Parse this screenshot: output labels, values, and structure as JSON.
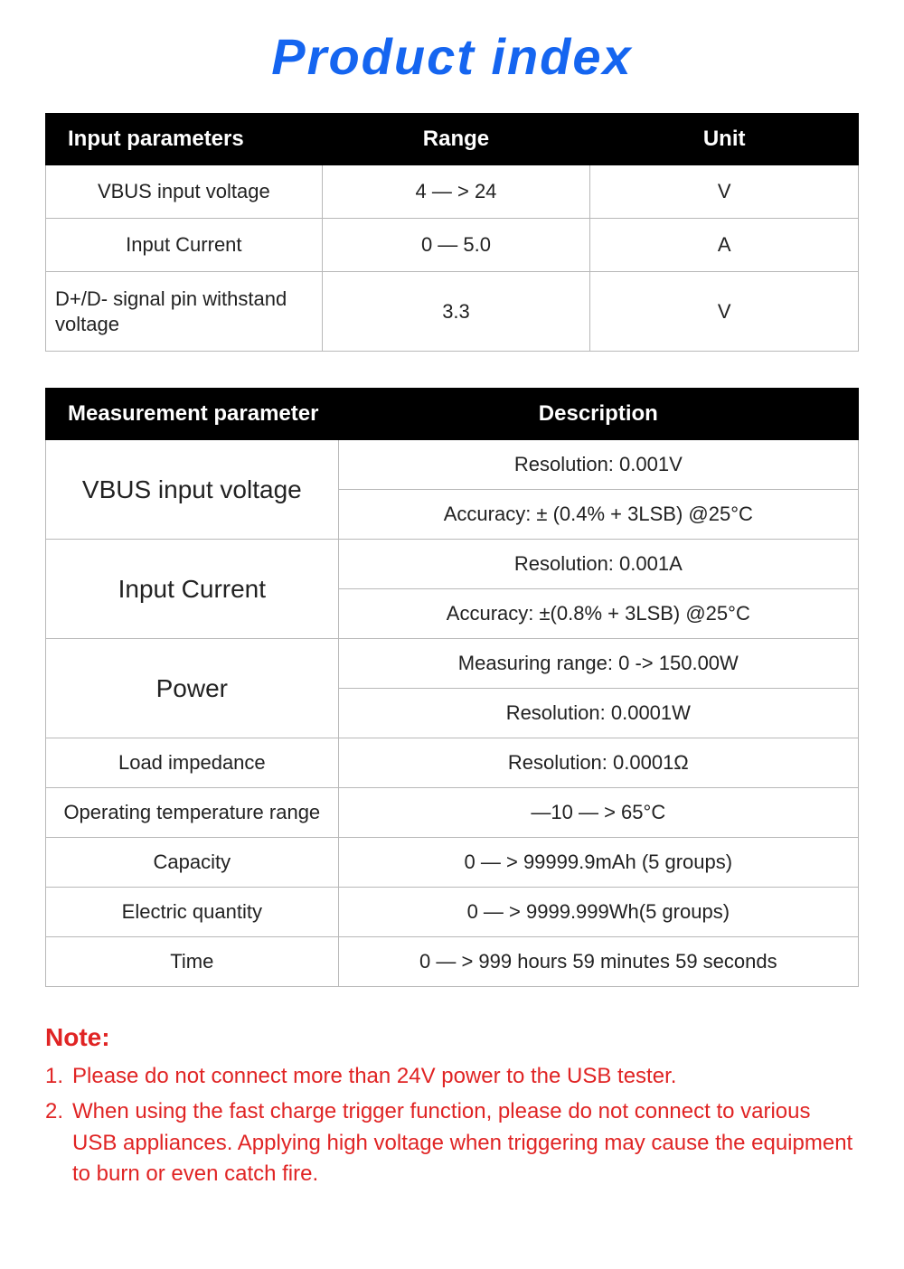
{
  "title": {
    "text": "Product index",
    "color": "#1565f0"
  },
  "table1": {
    "headers": [
      "Input parameters",
      "Range",
      "Unit"
    ],
    "rows": [
      {
        "param": "VBUS input voltage",
        "range": "4 — > 24",
        "unit": "V"
      },
      {
        "param": "Input Current",
        "range": "0 — 5.0",
        "unit": "A"
      },
      {
        "param": "D+/D- signal pin withstand voltage",
        "range": "3.3",
        "unit": "V"
      }
    ],
    "colors": {
      "header_bg": "#000000",
      "header_fg": "#ffffff",
      "border": "#b8b8b8"
    }
  },
  "table2": {
    "headers": [
      "Measurement parameter",
      "Description"
    ],
    "groups": [
      {
        "param": "VBUS input voltage",
        "descs": [
          "Resolution: 0.001V",
          "Accuracy: ± (0.4% + 3LSB) @25°C"
        ],
        "big": true
      },
      {
        "param": "Input Current",
        "descs": [
          "Resolution: 0.001A",
          "Accuracy: ±(0.8% + 3LSB) @25°C"
        ],
        "big": true
      },
      {
        "param": "Power",
        "descs": [
          "Measuring range: 0 -> 150.00W",
          "Resolution: 0.0001W"
        ],
        "big": true
      },
      {
        "param": "Load impedance",
        "descs": [
          "Resolution: 0.0001Ω"
        ],
        "big": false
      },
      {
        "param": "Operating temperature range",
        "descs": [
          "—10 — > 65°C"
        ],
        "big": false
      },
      {
        "param": "Capacity",
        "descs": [
          "0 — > 99999.9mAh (5 groups)"
        ],
        "big": false
      },
      {
        "param": "Electric quantity",
        "descs": [
          "0 — > 9999.999Wh(5 groups)"
        ],
        "big": false
      },
      {
        "param": "Time",
        "descs": [
          "0 — > 999 hours 59 minutes 59 seconds"
        ],
        "big": false
      }
    ],
    "colors": {
      "header_bg": "#000000",
      "header_fg": "#ffffff",
      "border": "#b8b8b8"
    }
  },
  "notes": {
    "heading": "Note:",
    "color": "#e02424",
    "items": [
      "Please do not connect more than 24V power to the USB tester.",
      "When using the fast charge trigger function, please do not connect to various USB appliances. Applying high voltage when triggering may cause the equipment to burn or even catch fire."
    ]
  }
}
